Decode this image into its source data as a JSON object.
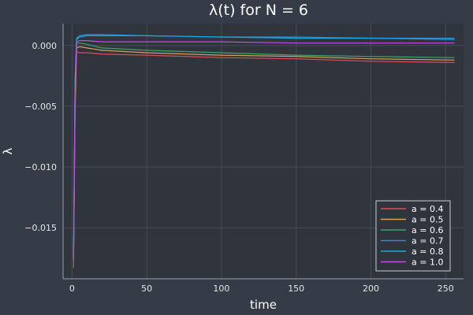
{
  "chart_data": {
    "type": "line",
    "title": "λ(t) for N = 6",
    "xlabel": "time",
    "ylabel": "λ",
    "xlim": [
      -6,
      262
    ],
    "ylim": [
      -0.0192,
      0.0018
    ],
    "xticks": [
      0,
      50,
      100,
      150,
      200,
      250
    ],
    "xtick_labels": [
      "0",
      "50",
      "100",
      "150",
      "200",
      "250"
    ],
    "yticks": [
      0.0,
      -0.005,
      -0.01,
      -0.015
    ],
    "ytick_labels": [
      "0.000",
      "−0.005",
      "−0.010",
      "−0.015"
    ],
    "grid": true,
    "legend": "bottom-right",
    "colors": {
      "background": "#363c47",
      "plot_background": "#30343d",
      "grid": "#464b55",
      "axis": "#9aa0aa",
      "text": "#ffffff"
    },
    "series": [
      {
        "name": "a = 0.4",
        "color": "#e04b5a",
        "x": [
          1,
          2,
          3,
          5,
          10,
          20,
          50,
          100,
          150,
          200,
          256
        ],
        "y": [
          -0.0183,
          -0.006,
          -0.0005,
          -0.0006,
          -0.0006,
          -0.0007,
          -0.0008,
          -0.001,
          -0.0011,
          -0.0013,
          -0.0014
        ]
      },
      {
        "name": "a = 0.5",
        "color": "#d9a05b",
        "x": [
          1,
          2,
          3,
          5,
          10,
          20,
          50,
          100,
          150,
          200,
          256
        ],
        "y": [
          -0.0175,
          -0.005,
          -0.0002,
          -0.0001,
          -0.0002,
          -0.0004,
          -0.0006,
          -0.0008,
          -0.0009,
          -0.0011,
          -0.0012
        ]
      },
      {
        "name": "a = 0.6",
        "color": "#41a36b",
        "x": [
          1,
          2,
          3,
          5,
          10,
          20,
          50,
          100,
          150,
          200,
          256
        ],
        "y": [
          -0.0172,
          -0.004,
          0.0002,
          0.0002,
          0.0001,
          -0.0002,
          -0.0004,
          -0.0006,
          -0.0008,
          -0.0009,
          -0.001
        ]
      },
      {
        "name": "a = 0.7",
        "color": "#2b8dd1",
        "x": [
          1,
          2,
          3,
          5,
          10,
          20,
          50,
          100,
          150,
          200,
          256
        ],
        "y": [
          -0.0172,
          -0.003,
          0.0006,
          0.0008,
          0.0009,
          0.0009,
          0.0008,
          0.0007,
          0.0007,
          0.0006,
          0.0006
        ]
      },
      {
        "name": "a = 0.8",
        "color": "#1fa6e0",
        "x": [
          1,
          2,
          3,
          5,
          10,
          20,
          50,
          100,
          150,
          200,
          256
        ],
        "y": [
          -0.0174,
          -0.003,
          0.0005,
          0.0007,
          0.0008,
          0.0008,
          0.0008,
          0.0007,
          0.0006,
          0.0006,
          0.0005
        ]
      },
      {
        "name": "a = 1.0",
        "color": "#c04ee0",
        "x": [
          1,
          2,
          3,
          5,
          10,
          20,
          50,
          100,
          150,
          200,
          256
        ],
        "y": [
          -0.0176,
          -0.004,
          0.0003,
          0.0004,
          0.0004,
          0.0003,
          0.0003,
          0.0003,
          0.0002,
          0.0002,
          0.0002
        ]
      }
    ]
  }
}
